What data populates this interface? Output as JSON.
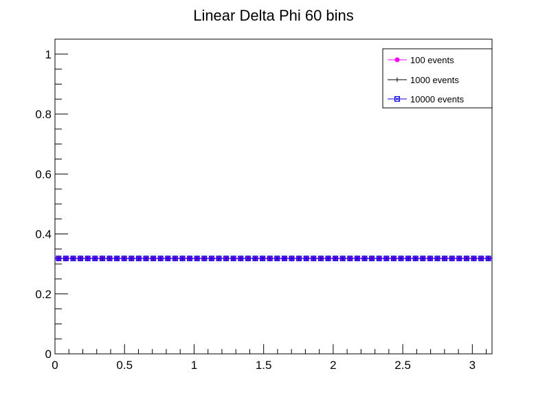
{
  "chart_data": {
    "type": "scatter",
    "title": "Linear Delta Phi 60 bins",
    "xlabel": "",
    "ylabel": "",
    "xlim": [
      0,
      3.14159
    ],
    "ylim": [
      0,
      1.05
    ],
    "x_ticks": [
      {
        "value": 0,
        "label": "0"
      },
      {
        "value": 0.5,
        "label": "0.5"
      },
      {
        "value": 1,
        "label": "1"
      },
      {
        "value": 1.5,
        "label": "1.5"
      },
      {
        "value": 2,
        "label": "2"
      },
      {
        "value": 2.5,
        "label": "2.5"
      },
      {
        "value": 3,
        "label": "3"
      }
    ],
    "y_ticks": [
      {
        "value": 0,
        "label": "0"
      },
      {
        "value": 0.2,
        "label": "0.2"
      },
      {
        "value": 0.4,
        "label": "0.4"
      },
      {
        "value": 0.6,
        "label": "0.6"
      },
      {
        "value": 0.8,
        "label": "0.8"
      },
      {
        "value": 1,
        "label": "1"
      }
    ],
    "bins": 60,
    "grid": false,
    "legend_position": "top-right",
    "series": [
      {
        "name": "100 events",
        "color": "#ff00ff",
        "marker": "circle",
        "value": 0.3183
      },
      {
        "name": "1000 events",
        "color": "#000000",
        "marker": "cross",
        "value": 0.3183
      },
      {
        "name": "10000 events",
        "color": "#0000ff",
        "marker": "open-square",
        "value": 0.3183
      }
    ]
  }
}
